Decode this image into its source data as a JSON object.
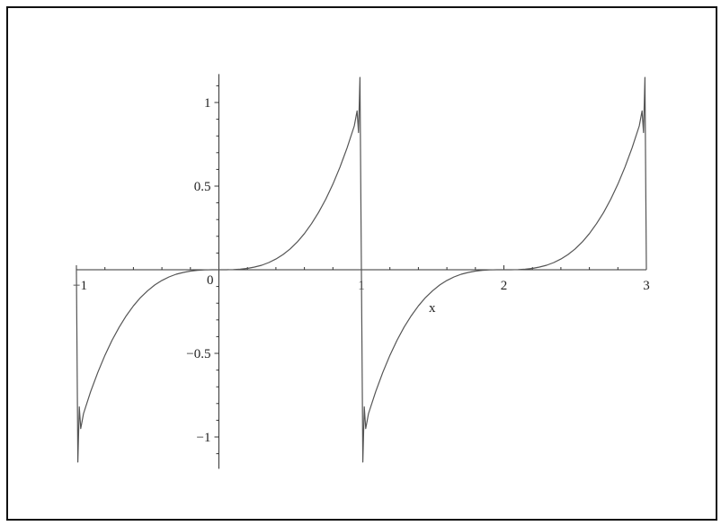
{
  "chart_data": {
    "type": "line",
    "title": "",
    "xlabel": "x",
    "ylabel": "",
    "xlim": [
      -1,
      3
    ],
    "ylim": [
      -1.19,
      1.17
    ],
    "grid": false,
    "line_color": "#555555",
    "x_ticks": [
      {
        "value": -1,
        "label": "−1"
      },
      {
        "value": 0,
        "label": "0"
      },
      {
        "value": 1,
        "label": "1"
      },
      {
        "value": 2,
        "label": "2"
      },
      {
        "value": 3,
        "label": "3"
      }
    ],
    "y_ticks": [
      {
        "value": 1,
        "label": "1"
      },
      {
        "value": 0.5,
        "label": "0.5"
      },
      {
        "value": -0.5,
        "label": "−0.5"
      },
      {
        "value": -1,
        "label": "−1"
      }
    ],
    "series": [
      {
        "x": [
          -1,
          -0.99,
          -0.98,
          -0.97,
          -0.95,
          -0.9,
          -0.85,
          -0.8,
          -0.75,
          -0.7,
          -0.65,
          -0.6,
          -0.55,
          -0.5,
          -0.45,
          -0.4,
          -0.35,
          -0.3,
          -0.25,
          -0.2,
          -0.15,
          -0.1,
          -0.05,
          0,
          0.05,
          0.1,
          0.15,
          0.2,
          0.25,
          0.3,
          0.35,
          0.4,
          0.45,
          0.5,
          0.55,
          0.6,
          0.65,
          0.7,
          0.75,
          0.8,
          0.85,
          0.9,
          0.95,
          0.97,
          0.98,
          0.99,
          1,
          1.01,
          1.02,
          1.03,
          1.05,
          1.1,
          1.15,
          1.2,
          1.25,
          1.3,
          1.35,
          1.4,
          1.45,
          1.5,
          1.55,
          1.6,
          1.65,
          1.7,
          1.75,
          1.8,
          1.85,
          1.9,
          1.95,
          2,
          2.05,
          2.1,
          2.15,
          2.2,
          2.25,
          2.3,
          2.35,
          2.4,
          2.45,
          2.5,
          2.55,
          2.6,
          2.65,
          2.7,
          2.75,
          2.8,
          2.85,
          2.9,
          2.95,
          2.97,
          2.98,
          2.99,
          3
        ],
        "y": [
          0,
          -1.15,
          -0.82,
          -0.95,
          -0.86,
          -0.729,
          -0.614,
          -0.512,
          -0.422,
          -0.343,
          -0.275,
          -0.216,
          -0.166,
          -0.125,
          -0.091,
          -0.064,
          -0.043,
          -0.027,
          -0.016,
          -0.008,
          -0.003,
          -0.001,
          0,
          0,
          0,
          0.001,
          0.003,
          0.008,
          0.016,
          0.027,
          0.043,
          0.064,
          0.091,
          0.125,
          0.166,
          0.216,
          0.275,
          0.343,
          0.422,
          0.512,
          0.614,
          0.729,
          0.86,
          0.95,
          0.82,
          1.15,
          0,
          -1.15,
          -0.82,
          -0.95,
          -0.86,
          -0.729,
          -0.614,
          -0.512,
          -0.422,
          -0.343,
          -0.275,
          -0.216,
          -0.166,
          -0.125,
          -0.091,
          -0.064,
          -0.043,
          -0.027,
          -0.016,
          -0.008,
          -0.003,
          -0.001,
          0,
          0,
          0,
          0.001,
          0.003,
          0.008,
          0.016,
          0.027,
          0.043,
          0.064,
          0.091,
          0.125,
          0.166,
          0.216,
          0.275,
          0.343,
          0.422,
          0.512,
          0.614,
          0.729,
          0.86,
          0.95,
          0.82,
          1.15,
          0
        ]
      }
    ]
  }
}
